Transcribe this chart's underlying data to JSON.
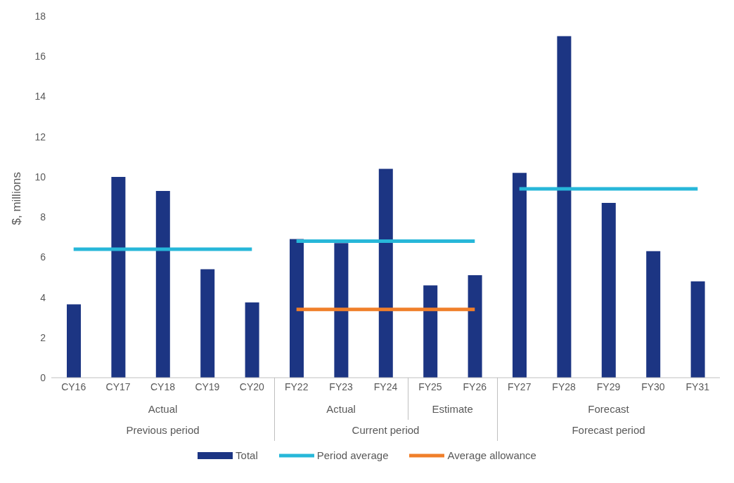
{
  "chart_data": {
    "type": "bar",
    "ylabel": "$, millions",
    "categories": [
      "CY16",
      "CY17",
      "CY18",
      "CY19",
      "CY20",
      "FY22",
      "FY23",
      "FY24",
      "FY25",
      "FY26",
      "FY27",
      "FY28",
      "FY29",
      "FY30",
      "FY31"
    ],
    "series": [
      {
        "name": "Total",
        "color": "#1c3583",
        "values": [
          3.65,
          10,
          9.3,
          5.4,
          3.75,
          6.9,
          6.7,
          10.4,
          4.6,
          5.1,
          10.2,
          17,
          8.7,
          6.3,
          4.8
        ]
      },
      {
        "name": "Period average",
        "type": "line",
        "color": "#27b7d9",
        "values": [
          6.4,
          6.4,
          6.4,
          6.4,
          6.4,
          null,
          null,
          null,
          null,
          null,
          null,
          null,
          null,
          null,
          null
        ]
      },
      {
        "type": "line",
        "color": "#27b7d9",
        "values": [
          null,
          null,
          null,
          null,
          null,
          6.8,
          6.8,
          6.8,
          6.8,
          6.8,
          null,
          null,
          null,
          null,
          null
        ]
      },
      {
        "type": "line",
        "color": "#27b7d9",
        "values": [
          null,
          null,
          null,
          null,
          null,
          null,
          null,
          null,
          null,
          null,
          9.4,
          9.4,
          9.4,
          9.4,
          9.4
        ]
      },
      {
        "name": "Average allowance",
        "type": "line",
        "color": "#f07f2a",
        "values": [
          null,
          null,
          null,
          null,
          null,
          3.4,
          3.4,
          3.4,
          3.4,
          3.4,
          null,
          null,
          null,
          null,
          null
        ]
      }
    ],
    "annotations": [
      "Actual",
      "Actual",
      "Estimate",
      "Forecast",
      "Previous period",
      "Current period",
      "Forecast period"
    ],
    "ylim": [
      0,
      18
    ],
    "yticks": [
      0,
      2,
      4,
      6,
      8,
      10,
      12,
      14,
      16,
      18
    ],
    "grid": false,
    "legend": "bottom",
    "marker": "none",
    "line_style": "solid"
  }
}
